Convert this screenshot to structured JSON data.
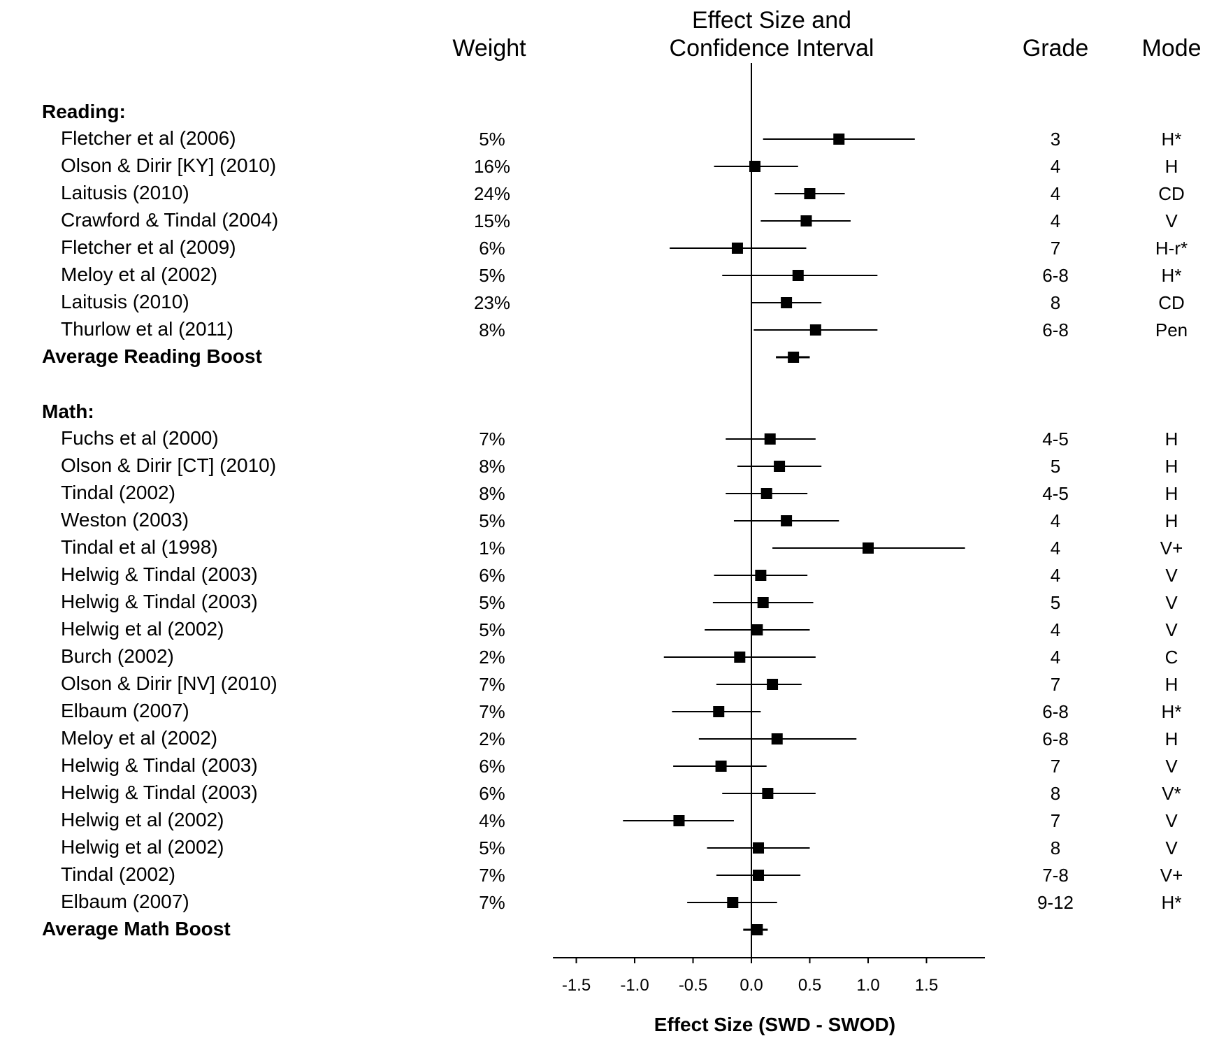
{
  "headers": {
    "weight": "Weight",
    "effect_line1": "Effect Size and",
    "effect_line2": "Confidence Interval",
    "grade": "Grade",
    "mode": "Mode"
  },
  "chart_data": {
    "type": "forest",
    "xlabel": "Effect Size (SWD - SWOD)",
    "xlim": [
      -1.7,
      2.0
    ],
    "ticks": [
      -1.5,
      -1.0,
      -0.5,
      0.0,
      0.5,
      1.0,
      1.5
    ],
    "tick_labels": [
      "-1.5",
      "-1.0",
      "-0.5",
      "0.0",
      "0.5",
      "1.0",
      "1.5"
    ],
    "reference_line": 0.0,
    "groups": [
      {
        "label": "Reading:",
        "studies": [
          {
            "study": "Fletcher et al  (2006)",
            "weight": "5%",
            "grade": "3",
            "mode": "H*",
            "es": 0.75,
            "lo": 0.1,
            "hi": 1.4
          },
          {
            "study": "Olson & Dirir [KY] (2010)",
            "weight": "16%",
            "grade": "4",
            "mode": "H",
            "es": 0.03,
            "lo": -0.32,
            "hi": 0.4
          },
          {
            "study": "Laitusis (2010)",
            "weight": "24%",
            "grade": "4",
            "mode": "CD",
            "es": 0.5,
            "lo": 0.2,
            "hi": 0.8
          },
          {
            "study": "Crawford & Tindal (2004)",
            "weight": "15%",
            "grade": "4",
            "mode": "V",
            "es": 0.47,
            "lo": 0.08,
            "hi": 0.85
          },
          {
            "study": "Fletcher et al  (2009)",
            "weight": "6%",
            "grade": "7",
            "mode": "H-r*",
            "es": -0.12,
            "lo": -0.7,
            "hi": 0.47
          },
          {
            "study": "Meloy et al  (2002)",
            "weight": "5%",
            "grade": "6-8",
            "mode": "H*",
            "es": 0.4,
            "lo": -0.25,
            "hi": 1.08
          },
          {
            "study": "Laitusis (2010)",
            "weight": "23%",
            "grade": "8",
            "mode": "CD",
            "es": 0.3,
            "lo": 0.0,
            "hi": 0.6
          },
          {
            "study": "Thurlow et al (2011)",
            "weight": "8%",
            "grade": "6-8",
            "mode": "Pen",
            "es": 0.55,
            "lo": 0.02,
            "hi": 1.08
          }
        ],
        "summary": {
          "label": "Average Reading Boost",
          "es": 0.36,
          "lo": 0.21,
          "hi": 0.5
        }
      },
      {
        "label": "Math:",
        "studies": [
          {
            "study": "Fuchs et al  (2000)",
            "weight": "7%",
            "grade": "4-5",
            "mode": "H",
            "es": 0.16,
            "lo": -0.22,
            "hi": 0.55
          },
          {
            "study": "Olson & Dirir [CT] (2010)",
            "weight": "8%",
            "grade": "5",
            "mode": "H",
            "es": 0.24,
            "lo": -0.12,
            "hi": 0.6
          },
          {
            "study": "Tindal (2002)",
            "weight": "8%",
            "grade": "4-5",
            "mode": "H",
            "es": 0.13,
            "lo": -0.22,
            "hi": 0.48
          },
          {
            "study": "Weston (2003)",
            "weight": "5%",
            "grade": "4",
            "mode": "H",
            "es": 0.3,
            "lo": -0.15,
            "hi": 0.75
          },
          {
            "study": "Tindal et al  (1998)",
            "weight": "1%",
            "grade": "4",
            "mode": "V+",
            "es": 1.0,
            "lo": 0.18,
            "hi": 1.83
          },
          {
            "study": "Helwig & Tindal (2003)",
            "weight": "6%",
            "grade": "4",
            "mode": "V",
            "es": 0.08,
            "lo": -0.32,
            "hi": 0.48
          },
          {
            "study": "Helwig & Tindal (2003)",
            "weight": "5%",
            "grade": "5",
            "mode": "V",
            "es": 0.1,
            "lo": -0.33,
            "hi": 0.53
          },
          {
            "study": "Helwig et al  (2002)",
            "weight": "5%",
            "grade": "4",
            "mode": "V",
            "es": 0.05,
            "lo": -0.4,
            "hi": 0.5
          },
          {
            "study": "Burch (2002)",
            "weight": "2%",
            "grade": "4",
            "mode": "C",
            "es": -0.1,
            "lo": -0.75,
            "hi": 0.55
          },
          {
            "study": "Olson & Dirir [NV] (2010)",
            "weight": "7%",
            "grade": "7",
            "mode": "H",
            "es": 0.18,
            "lo": -0.3,
            "hi": 0.43
          },
          {
            "study": "Elbaum (2007)",
            "weight": "7%",
            "grade": "6-8",
            "mode": "H*",
            "es": -0.28,
            "lo": -0.68,
            "hi": 0.08
          },
          {
            "study": "Meloy et al  (2002)",
            "weight": "2%",
            "grade": "6-8",
            "mode": "H",
            "es": 0.22,
            "lo": -0.45,
            "hi": 0.9
          },
          {
            "study": "Helwig & Tindal (2003)",
            "weight": "6%",
            "grade": "7",
            "mode": "V",
            "es": -0.26,
            "lo": -0.67,
            "hi": 0.13
          },
          {
            "study": "Helwig & Tindal (2003)",
            "weight": "6%",
            "grade": "8",
            "mode": "V*",
            "es": 0.14,
            "lo": -0.25,
            "hi": 0.55
          },
          {
            "study": "Helwig et al  (2002)",
            "weight": "4%",
            "grade": "7",
            "mode": "V",
            "es": -0.62,
            "lo": -1.1,
            "hi": -0.15
          },
          {
            "study": "Helwig et al  (2002)",
            "weight": "5%",
            "grade": "8",
            "mode": "V",
            "es": 0.06,
            "lo": -0.38,
            "hi": 0.5
          },
          {
            "study": "Tindal (2002)",
            "weight": "7%",
            "grade": "7-8",
            "mode": "V+",
            "es": 0.06,
            "lo": -0.3,
            "hi": 0.42
          },
          {
            "study": "Elbaum (2007)",
            "weight": "7%",
            "grade": "9-12",
            "mode": "H*",
            "es": -0.16,
            "lo": -0.55,
            "hi": 0.22
          }
        ],
        "summary": {
          "label": "Average Math Boost",
          "es": 0.05,
          "lo": -0.07,
          "hi": 0.14
        }
      }
    ]
  }
}
